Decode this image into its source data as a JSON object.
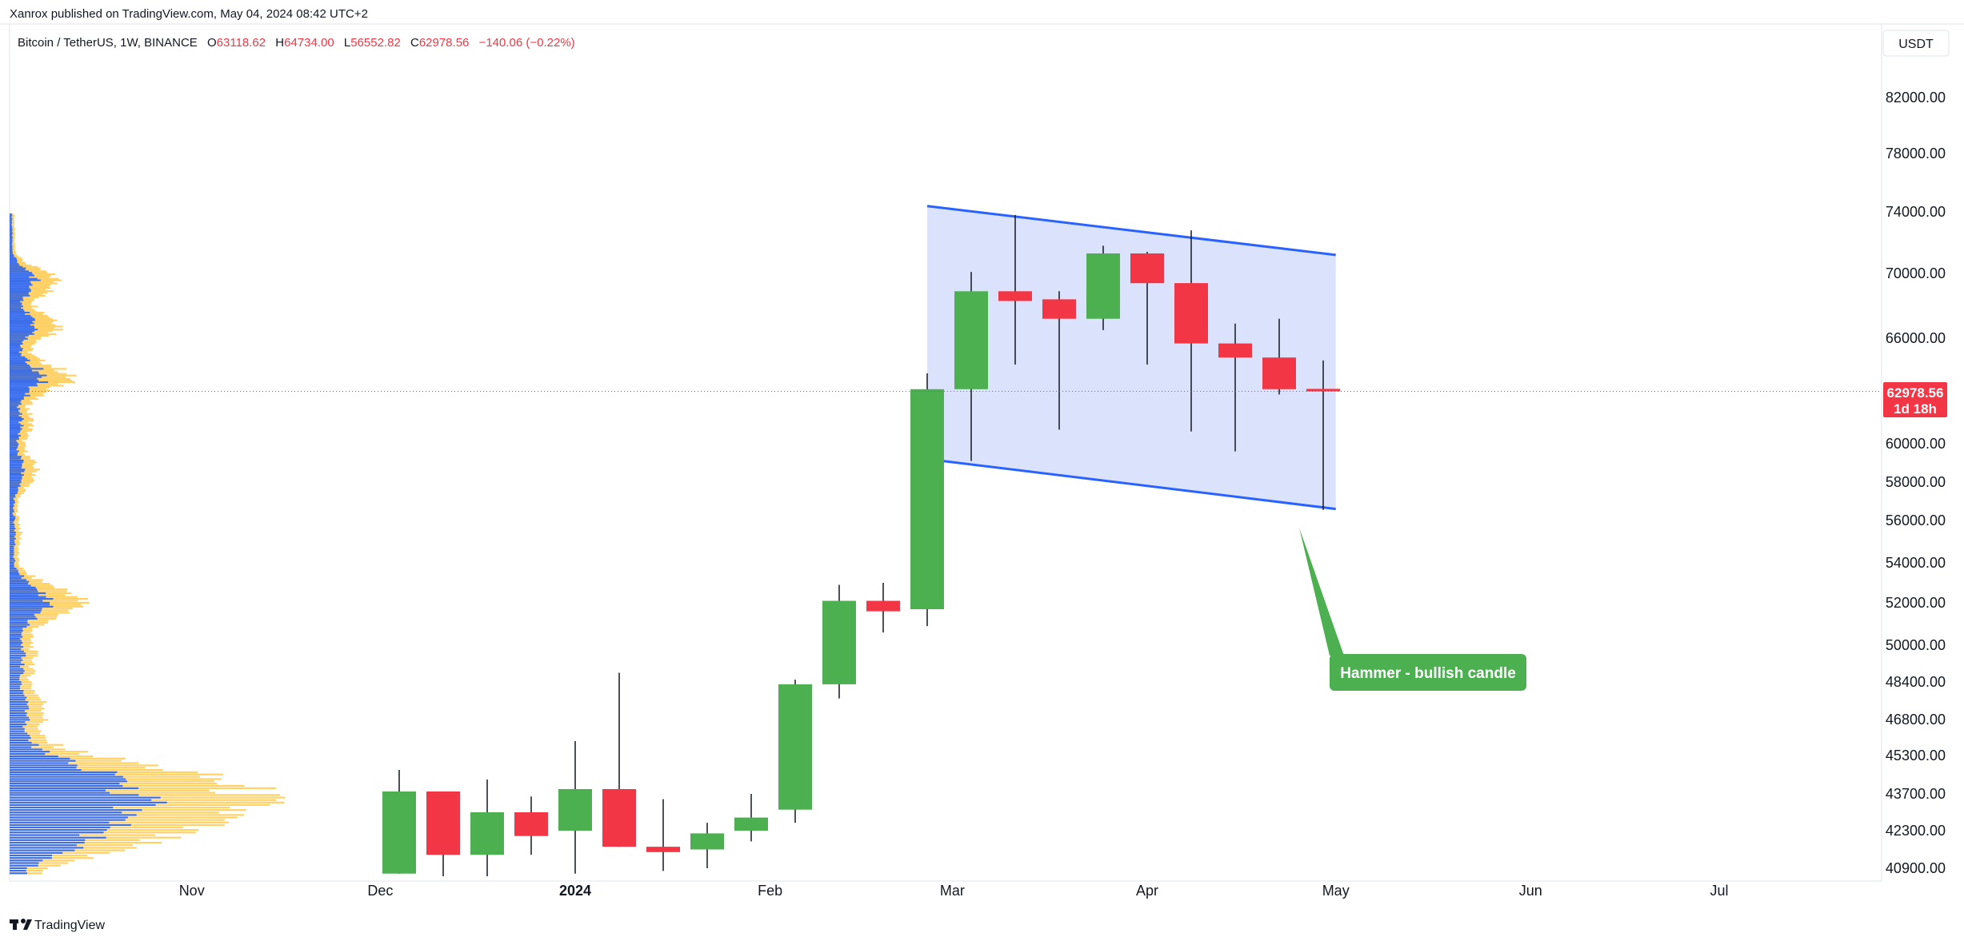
{
  "header": {
    "publisher": "Xanrox published on TradingView.com, May 04, 2024 08:42 UTC+2",
    "symbol": "Bitcoin / TetherUS, 1W, BINANCE",
    "ohlc": {
      "open_label": "O",
      "open": "63118.62",
      "high_label": "H",
      "high": "64734.00",
      "low_label": "L",
      "low": "56552.82",
      "close_label": "C",
      "close": "62978.56",
      "change": "−140.06 (−0.22%)"
    }
  },
  "currency_button": {
    "label": "USDT"
  },
  "price_tag": {
    "price": "62978.56",
    "countdown": "1d 18h"
  },
  "annotation": {
    "text": "Hammer - bullish candle"
  },
  "footer": {
    "logo_text": "TradingView"
  },
  "colors": {
    "up": "#4caf50",
    "down": "#f23645",
    "channel_line": "#2962ff",
    "channel_fill": "#d6e0fb",
    "vp_blue": "#3b6ee8",
    "vp_orange": "#ffd166",
    "last_price_line": "#f23645"
  },
  "chart_data": {
    "type": "candlestick",
    "title": "Bitcoin / TetherUS, 1W, BINANCE",
    "y_ticks": [
      82000,
      78000,
      74000,
      70000,
      66000,
      60000,
      58000,
      56000,
      54000,
      52000,
      50000,
      48400,
      46800,
      45300,
      43700,
      42300,
      40900
    ],
    "y_tick_labels": [
      "82000.00",
      "78000.00",
      "74000.00",
      "70000.00",
      "66000.00",
      "60000.00",
      "58000.00",
      "56000.00",
      "54000.00",
      "52000.00",
      "50000.00",
      "48400.00",
      "46800.00",
      "45300.00",
      "43700.00",
      "42300.00",
      "40900.00"
    ],
    "x_labels": [
      "Nov",
      "Dec",
      "2024",
      "Feb",
      "Mar",
      "Apr",
      "May",
      "Jun",
      "Jul"
    ],
    "candles": [
      {
        "date": "2023-12-04",
        "o": 40700,
        "h": 44700,
        "l": 40700,
        "c": 43800
      },
      {
        "date": "2023-12-11",
        "o": 43800,
        "h": 43800,
        "l": 40600,
        "c": 41400
      },
      {
        "date": "2023-12-18",
        "o": 41400,
        "h": 44300,
        "l": 40600,
        "c": 43000
      },
      {
        "date": "2023-12-25",
        "o": 43000,
        "h": 43600,
        "l": 41400,
        "c": 42100
      },
      {
        "date": "2024-01-01",
        "o": 42300,
        "h": 45900,
        "l": 40700,
        "c": 43900
      },
      {
        "date": "2024-01-08",
        "o": 43900,
        "h": 48800,
        "l": 41700,
        "c": 41700
      },
      {
        "date": "2024-01-15",
        "o": 41700,
        "h": 43500,
        "l": 40800,
        "c": 41500
      },
      {
        "date": "2024-01-22",
        "o": 41600,
        "h": 42600,
        "l": 40900,
        "c": 42200
      },
      {
        "date": "2024-01-29",
        "o": 42300,
        "h": 43700,
        "l": 41900,
        "c": 42800
      },
      {
        "date": "2024-02-05",
        "o": 43100,
        "h": 48500,
        "l": 42600,
        "c": 48300
      },
      {
        "date": "2024-02-12",
        "o": 48300,
        "h": 52900,
        "l": 47700,
        "c": 52100
      },
      {
        "date": "2024-02-19",
        "o": 52100,
        "h": 53000,
        "l": 50600,
        "c": 51600
      },
      {
        "date": "2024-02-26",
        "o": 51700,
        "h": 64000,
        "l": 50900,
        "c": 63100
      },
      {
        "date": "2024-03-04",
        "o": 63100,
        "h": 70100,
        "l": 59100,
        "c": 68900
      },
      {
        "date": "2024-03-11",
        "o": 68900,
        "h": 73800,
        "l": 64500,
        "c": 68300
      },
      {
        "date": "2024-03-18",
        "o": 68400,
        "h": 68900,
        "l": 60800,
        "c": 67200
      },
      {
        "date": "2024-03-25",
        "o": 67200,
        "h": 71800,
        "l": 66500,
        "c": 71300
      },
      {
        "date": "2024-04-01",
        "o": 71300,
        "h": 71400,
        "l": 64500,
        "c": 69400
      },
      {
        "date": "2024-04-08",
        "o": 69400,
        "h": 72800,
        "l": 60700,
        "c": 65700
      },
      {
        "date": "2024-04-15",
        "o": 65700,
        "h": 66900,
        "l": 59600,
        "c": 64900
      },
      {
        "date": "2024-04-22",
        "o": 64900,
        "h": 67200,
        "l": 62800,
        "c": 63100
      },
      {
        "date": "2024-04-29",
        "o": 63118.62,
        "h": 64734,
        "l": 56552.82,
        "c": 62978.56
      }
    ],
    "channel": {
      "upper": [
        {
          "date": "2024-02-26",
          "price": 74400
        },
        {
          "date": "2024-05-01",
          "price": 71200
        }
      ],
      "lower": [
        {
          "date": "2024-02-26",
          "price": 59200
        },
        {
          "date": "2024-05-01",
          "price": 56600
        }
      ]
    },
    "last_price": 62978.56
  }
}
